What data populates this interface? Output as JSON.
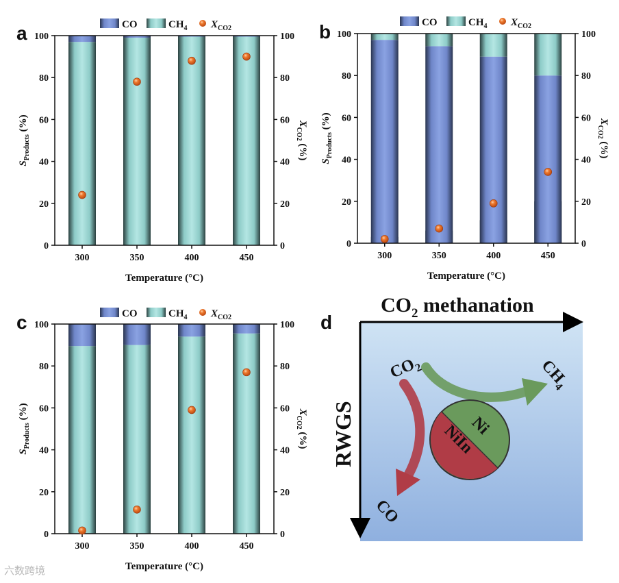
{
  "chart_data": [
    {
      "panel": "a",
      "type": "bar",
      "stacked": true,
      "categories": [
        "300",
        "350",
        "400",
        "450"
      ],
      "series": [
        {
          "name": "CO",
          "values": [
            3,
            1,
            0.5,
            0.5
          ]
        },
        {
          "name": "CH4",
          "values": [
            97,
            99,
            99.5,
            99.5
          ]
        }
      ],
      "conversion": {
        "name": "X_CO2",
        "values": [
          24,
          78,
          88,
          90
        ]
      },
      "xlabel": "Temperature (°C)",
      "ylabel": {
        "main": "S",
        "sub": "Products",
        "unit": "(%)"
      },
      "y2label": {
        "main": "X",
        "sub": "CO2",
        "unit": "(%)"
      },
      "ylim": [
        0,
        100
      ],
      "y2lim": [
        0,
        100
      ],
      "yticks": [
        "0",
        "20",
        "40",
        "60",
        "80",
        "100"
      ]
    },
    {
      "panel": "b",
      "type": "bar",
      "stacked": true,
      "categories": [
        "300",
        "350",
        "400",
        "450"
      ],
      "series": [
        {
          "name": "CO",
          "values": [
            97,
            94,
            89,
            80
          ]
        },
        {
          "name": "CH4",
          "values": [
            3,
            6,
            11,
            20
          ]
        }
      ],
      "conversion": {
        "name": "X_CO2",
        "values": [
          2,
          7,
          19,
          34
        ]
      },
      "xlabel": "Temperature (°C)",
      "ylabel": {
        "main": "S",
        "sub": "Products",
        "unit": "(%)"
      },
      "y2label": {
        "main": "X",
        "sub": "CO2",
        "unit": "(%)"
      },
      "ylim": [
        0,
        100
      ],
      "y2lim": [
        0,
        100
      ],
      "yticks": [
        "0",
        "20",
        "40",
        "60",
        "80",
        "100"
      ]
    },
    {
      "panel": "c",
      "type": "bar",
      "stacked": true,
      "categories": [
        "300",
        "350",
        "400",
        "450"
      ],
      "series": [
        {
          "name": "CO",
          "values": [
            10.5,
            10,
            6,
            4.5
          ]
        },
        {
          "name": "CH4",
          "values": [
            89.5,
            90,
            94,
            95.5
          ]
        }
      ],
      "conversion": {
        "name": "X_CO2",
        "values": [
          1.5,
          11.5,
          59,
          77
        ]
      },
      "xlabel": "Temperature (°C)",
      "ylabel": {
        "main": "S",
        "sub": "Products",
        "unit": "(%)"
      },
      "y2label": {
        "main": "X",
        "sub": "CO2",
        "unit": "(%)"
      },
      "ylim": [
        0,
        100
      ],
      "y2lim": [
        0,
        100
      ],
      "yticks": [
        "0",
        "20",
        "40",
        "60",
        "80",
        "100"
      ]
    }
  ],
  "legend": {
    "co": "CO",
    "ch4_main": "CH",
    "ch4_sub": "4",
    "x_main": "X",
    "x_sub": "CO2"
  },
  "diagram": {
    "panel": "d",
    "top_axis_main": "CO",
    "top_axis_sub": "2",
    "top_axis_rest": " methanation",
    "left_axis": "RWGS",
    "reactant_main": "CO",
    "reactant_sub": "2",
    "product_ch4_main": "CH",
    "product_ch4_sub": "4",
    "product_co": "CO",
    "circle_top": "Ni",
    "circle_bottom": "NiIn"
  },
  "colors": {
    "co": "#7b93d6",
    "ch4": "#a9dedb",
    "dot": "#e0621c",
    "green": "#6a9a5c",
    "red": "#b03c46"
  },
  "watermark": "六数跨境"
}
